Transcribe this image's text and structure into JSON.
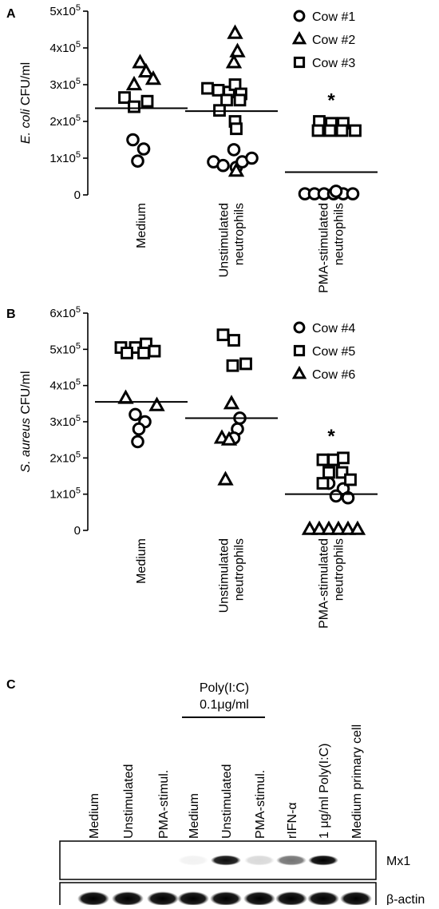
{
  "panel_letters": [
    "A",
    "B",
    "C"
  ],
  "chart_data": [
    {
      "panel": "A",
      "type": "scatter",
      "ylabel_italic": "E. coli",
      "ylabel_rest": "CFU/ml",
      "ylim": [
        0,
        500000
      ],
      "yticks": [
        {
          "value": 0,
          "base": "0",
          "exp": ""
        },
        {
          "value": 100000,
          "base": "1x10",
          "exp": "5"
        },
        {
          "value": 200000,
          "base": "2x10",
          "exp": "5"
        },
        {
          "value": 300000,
          "base": "3x10",
          "exp": "5"
        },
        {
          "value": 400000,
          "base": "4x10",
          "exp": "5"
        },
        {
          "value": 500000,
          "base": "5x10",
          "exp": "5"
        }
      ],
      "categories": [
        [
          "Medium"
        ],
        [
          "Unstimulated",
          "neutrophils"
        ],
        [
          "PMA-stimulated",
          "neutrophils"
        ]
      ],
      "means": [
        236000,
        228000,
        62000
      ],
      "significance": [
        {
          "category": 2,
          "label": "*",
          "y": 262000
        }
      ],
      "series": [
        {
          "name": "Cow #1",
          "marker": "circle",
          "points": [
            {
              "c": 0,
              "dx": -0.07,
              "y": 150000
            },
            {
              "c": 0,
              "dx": 0.02,
              "y": 125000
            },
            {
              "c": 0,
              "dx": -0.03,
              "y": 92000
            },
            {
              "c": 1,
              "dx": -0.15,
              "y": 90000
            },
            {
              "c": 1,
              "dx": -0.07,
              "y": 80000
            },
            {
              "c": 1,
              "dx": 0.02,
              "y": 123000
            },
            {
              "c": 1,
              "dx": 0.04,
              "y": 75000
            },
            {
              "c": 1,
              "dx": 0.09,
              "y": 90000
            },
            {
              "c": 1,
              "dx": 0.17,
              "y": 100000
            },
            {
              "c": 2,
              "dx": -0.22,
              "y": 3000
            },
            {
              "c": 2,
              "dx": -0.14,
              "y": 3000
            },
            {
              "c": 2,
              "dx": -0.06,
              "y": 3000
            },
            {
              "c": 2,
              "dx": 0.02,
              "y": 3000
            },
            {
              "c": 2,
              "dx": 0.1,
              "y": 3000
            },
            {
              "c": 2,
              "dx": 0.04,
              "y": 10000
            },
            {
              "c": 2,
              "dx": 0.18,
              "y": 3000
            }
          ]
        },
        {
          "name": "Cow #2",
          "marker": "triangle",
          "points": [
            {
              "c": 0,
              "dx": -0.01,
              "y": 360000
            },
            {
              "c": 0,
              "dx": 0.04,
              "y": 335000
            },
            {
              "c": 0,
              "dx": 0.1,
              "y": 315000
            },
            {
              "c": 0,
              "dx": -0.06,
              "y": 300000
            },
            {
              "c": 1,
              "dx": 0.03,
              "y": 440000
            },
            {
              "c": 1,
              "dx": 0.05,
              "y": 390000
            },
            {
              "c": 1,
              "dx": 0.02,
              "y": 360000
            },
            {
              "c": 1,
              "dx": 0.04,
              "y": 65000
            }
          ]
        },
        {
          "name": "Cow #3",
          "marker": "square",
          "points": [
            {
              "c": 0,
              "dx": -0.14,
              "y": 265000
            },
            {
              "c": 0,
              "dx": 0.05,
              "y": 255000
            },
            {
              "c": 0,
              "dx": -0.06,
              "y": 240000
            },
            {
              "c": 1,
              "dx": -0.2,
              "y": 290000
            },
            {
              "c": 1,
              "dx": -0.11,
              "y": 285000
            },
            {
              "c": 1,
              "dx": -0.02,
              "y": 280000
            },
            {
              "c": 1,
              "dx": 0.03,
              "y": 300000
            },
            {
              "c": 1,
              "dx": 0.08,
              "y": 275000
            },
            {
              "c": 1,
              "dx": -0.04,
              "y": 258000
            },
            {
              "c": 1,
              "dx": 0.07,
              "y": 258000
            },
            {
              "c": 1,
              "dx": -0.1,
              "y": 230000
            },
            {
              "c": 1,
              "dx": 0.03,
              "y": 200000
            },
            {
              "c": 1,
              "dx": 0.04,
              "y": 180000
            },
            {
              "c": 2,
              "dx": -0.1,
              "y": 200000
            },
            {
              "c": 2,
              "dx": 0.0,
              "y": 195000
            },
            {
              "c": 2,
              "dx": 0.1,
              "y": 195000
            },
            {
              "c": 2,
              "dx": -0.11,
              "y": 175000
            },
            {
              "c": 2,
              "dx": -0.01,
              "y": 175000
            },
            {
              "c": 2,
              "dx": 0.09,
              "y": 175000
            },
            {
              "c": 2,
              "dx": 0.2,
              "y": 175000
            }
          ]
        }
      ],
      "legend": [
        {
          "marker": "circle",
          "label": "Cow #1"
        },
        {
          "marker": "triangle",
          "label": "Cow #2"
        },
        {
          "marker": "square",
          "label": "Cow #3"
        }
      ]
    },
    {
      "panel": "B",
      "type": "scatter",
      "ylabel_italic": "S. aureus",
      "ylabel_rest": "CFU/ml",
      "ylim": [
        0,
        600000
      ],
      "yticks": [
        {
          "value": 0,
          "base": "0",
          "exp": ""
        },
        {
          "value": 100000,
          "base": "1x10",
          "exp": "5"
        },
        {
          "value": 200000,
          "base": "2x10",
          "exp": "5"
        },
        {
          "value": 300000,
          "base": "3x10",
          "exp": "5"
        },
        {
          "value": 400000,
          "base": "4x10",
          "exp": "5"
        },
        {
          "value": 500000,
          "base": "5x10",
          "exp": "5"
        },
        {
          "value": 600000,
          "base": "6x10",
          "exp": "5"
        }
      ],
      "categories": [
        [
          "Medium"
        ],
        [
          "Unstimulated",
          "neutrophils"
        ],
        [
          "PMA-stimulated",
          "neutrophils"
        ]
      ],
      "means": [
        355000,
        310000,
        100000
      ],
      "significance": [
        {
          "category": 2,
          "label": "*",
          "y": 265000
        }
      ],
      "series": [
        {
          "name": "Cow #4",
          "marker": "circle",
          "points": [
            {
              "c": 0,
              "dx": -0.05,
              "y": 320000
            },
            {
              "c": 0,
              "dx": 0.03,
              "y": 300000
            },
            {
              "c": 0,
              "dx": -0.02,
              "y": 280000
            },
            {
              "c": 0,
              "dx": -0.03,
              "y": 245000
            },
            {
              "c": 1,
              "dx": 0.07,
              "y": 310000
            },
            {
              "c": 1,
              "dx": 0.05,
              "y": 280000
            },
            {
              "c": 1,
              "dx": 0.02,
              "y": 255000
            },
            {
              "c": 2,
              "dx": -0.02,
              "y": 130000
            },
            {
              "c": 2,
              "dx": 0.1,
              "y": 115000
            },
            {
              "c": 2,
              "dx": 0.04,
              "y": 95000
            },
            {
              "c": 2,
              "dx": 0.14,
              "y": 90000
            }
          ]
        },
        {
          "name": "Cow #5",
          "marker": "square",
          "points": [
            {
              "c": 0,
              "dx": -0.17,
              "y": 505000
            },
            {
              "c": 0,
              "dx": -0.05,
              "y": 505000
            },
            {
              "c": 0,
              "dx": 0.04,
              "y": 515000
            },
            {
              "c": 0,
              "dx": 0.11,
              "y": 495000
            },
            {
              "c": 0,
              "dx": -0.12,
              "y": 490000
            },
            {
              "c": 0,
              "dx": 0.02,
              "y": 490000
            },
            {
              "c": 1,
              "dx": -0.07,
              "y": 540000
            },
            {
              "c": 1,
              "dx": 0.02,
              "y": 525000
            },
            {
              "c": 1,
              "dx": 0.01,
              "y": 455000
            },
            {
              "c": 1,
              "dx": 0.12,
              "y": 460000
            },
            {
              "c": 2,
              "dx": -0.07,
              "y": 195000
            },
            {
              "c": 2,
              "dx": 0.02,
              "y": 195000
            },
            {
              "c": 2,
              "dx": 0.1,
              "y": 200000
            },
            {
              "c": 2,
              "dx": -0.02,
              "y": 160000
            },
            {
              "c": 2,
              "dx": 0.09,
              "y": 160000
            },
            {
              "c": 2,
              "dx": -0.07,
              "y": 130000
            },
            {
              "c": 2,
              "dx": 0.16,
              "y": 140000
            }
          ]
        },
        {
          "name": "Cow #6",
          "marker": "triangle",
          "points": [
            {
              "c": 0,
              "dx": -0.13,
              "y": 365000
            },
            {
              "c": 0,
              "dx": 0.13,
              "y": 345000
            },
            {
              "c": 1,
              "dx": 0.0,
              "y": 350000
            },
            {
              "c": 1,
              "dx": -0.08,
              "y": 255000
            },
            {
              "c": 1,
              "dx": -0.02,
              "y": 250000
            },
            {
              "c": 1,
              "dx": -0.05,
              "y": 140000
            },
            {
              "c": 2,
              "dx": -0.18,
              "y": 3000
            },
            {
              "c": 2,
              "dx": -0.1,
              "y": 3000
            },
            {
              "c": 2,
              "dx": -0.02,
              "y": 3000
            },
            {
              "c": 2,
              "dx": 0.06,
              "y": 3000
            },
            {
              "c": 2,
              "dx": 0.14,
              "y": 3000
            },
            {
              "c": 2,
              "dx": 0.22,
              "y": 3000
            }
          ]
        }
      ],
      "legend": [
        {
          "marker": "circle",
          "label": "Cow #4"
        },
        {
          "marker": "square",
          "label": "Cow #5"
        },
        {
          "marker": "triangle",
          "label": "Cow #6"
        }
      ]
    }
  ],
  "blot": {
    "group_label_line1": "Poly(I:C)",
    "group_label_line2": "0.1μg/ml",
    "lanes": [
      "Medium",
      "Unstimulated",
      "PMA-stimul.",
      "Medium",
      "Unstimulated",
      "PMA-stimul.",
      "rIFN-α",
      "1 μg/ml Poly(I:C)",
      "Medium primary cell"
    ],
    "rows": [
      {
        "label": "Mx1",
        "band_intensity": [
          0,
          0,
          0,
          0.05,
          0.95,
          0.15,
          0.55,
          1.0,
          0
        ]
      },
      {
        "label": "β-actin",
        "band_intensity": [
          1,
          1,
          1,
          1,
          1,
          1,
          1,
          1,
          1
        ]
      }
    ]
  }
}
